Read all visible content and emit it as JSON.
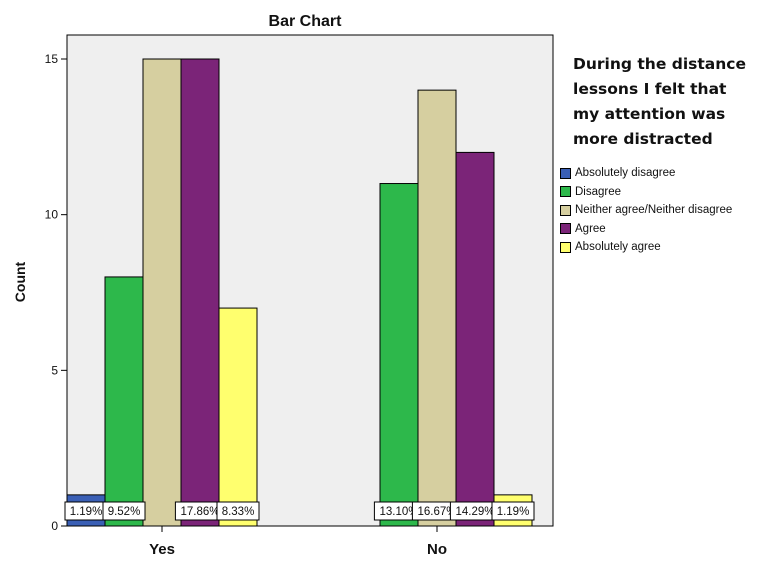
{
  "chart_data": {
    "type": "bar",
    "title": "Bar Chart",
    "xlabel": "",
    "ylabel": "Count",
    "ylim": [
      0,
      15.5
    ],
    "yticks": [
      0,
      5,
      10,
      15
    ],
    "grid": false,
    "legend_position": "right",
    "legend_title": "During the distance lessons I felt that my attention was more distracted",
    "categories": [
      "Yes",
      "No"
    ],
    "series": [
      {
        "name": "Absolutely disagree",
        "color": "#3a5fb5",
        "values": [
          1,
          0
        ],
        "labels": [
          "1.19%",
          ""
        ]
      },
      {
        "name": "Disagree",
        "color": "#2db84b",
        "values": [
          8,
          11
        ],
        "labels": [
          "9.52%",
          "13.10%"
        ]
      },
      {
        "name": "Neither agree/Neither disagree",
        "color": "#d6cfa0",
        "values": [
          15,
          14
        ],
        "labels": [
          "",
          "16.67%"
        ]
      },
      {
        "name": "Agree",
        "color": "#7b2478",
        "values": [
          15,
          12
        ],
        "labels": [
          "17.86%",
          "14.29%"
        ]
      },
      {
        "name": "Absolutely agree",
        "color": "#ffff6e",
        "values": [
          7,
          1
        ],
        "labels": [
          "8.33%",
          "1.19%"
        ]
      }
    ]
  }
}
